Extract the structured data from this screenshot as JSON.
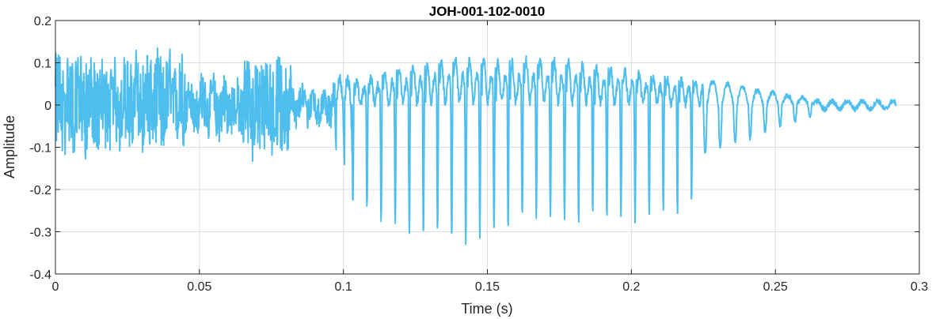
{
  "chart_data": {
    "type": "line",
    "title": "JOH-001-102-0010",
    "xlabel": "Time (s)",
    "ylabel": "Amplitude",
    "xlim": [
      0,
      0.3
    ],
    "ylim": [
      -0.4,
      0.2
    ],
    "xticks": [
      0,
      0.05,
      0.1,
      0.15,
      0.2,
      0.25,
      0.3
    ],
    "xtick_labels": [
      "0",
      "0.05",
      "0.1",
      "0.15",
      "0.2",
      "0.25",
      "0.3"
    ],
    "yticks": [
      -0.4,
      -0.3,
      -0.2,
      -0.1,
      0,
      0.1,
      0.2
    ],
    "ytick_labels": [
      "-0.4",
      "-0.3",
      "-0.2",
      "-0.1",
      "0",
      "0.1",
      "0.2"
    ],
    "grid": true,
    "line_color": "#4DBEEE",
    "series": [
      {
        "x_start": 0,
        "x_end": 0.292,
        "segments": [
          {
            "t0": 0.0,
            "t1": 0.012,
            "style": "noise",
            "hi": 0.12,
            "lo": -0.11
          },
          {
            "t0": 0.012,
            "t1": 0.025,
            "style": "noise",
            "hi": 0.1,
            "lo": -0.1
          },
          {
            "t0": 0.025,
            "t1": 0.045,
            "style": "noise",
            "hi": 0.12,
            "lo": -0.1
          },
          {
            "t0": 0.045,
            "t1": 0.065,
            "style": "noise",
            "hi": 0.06,
            "lo": -0.07
          },
          {
            "t0": 0.065,
            "t1": 0.082,
            "style": "noise",
            "hi": 0.11,
            "lo": -0.12
          },
          {
            "t0": 0.082,
            "t1": 0.097,
            "style": "noise",
            "hi": 0.04,
            "lo": -0.04
          },
          {
            "t0": 0.097,
            "t1": 0.103,
            "style": "onset",
            "hi": 0.08,
            "lo": -0.14
          },
          {
            "t0": 0.103,
            "t1": 0.225,
            "style": "voiced",
            "period": 0.0049
          },
          {
            "t0": 0.225,
            "t1": 0.265,
            "style": "decay",
            "hi": 0.06,
            "lo": -0.12
          },
          {
            "t0": 0.265,
            "t1": 0.292,
            "style": "tail",
            "hi": 0.01,
            "lo": -0.01
          }
        ],
        "voiced_peaks": [
          {
            "t": 0.1055,
            "hi": 0.08,
            "lo": -0.23
          },
          {
            "t": 0.11,
            "hi": 0.1,
            "lo": -0.26
          },
          {
            "t": 0.115,
            "hi": 0.12,
            "lo": -0.28
          },
          {
            "t": 0.12,
            "hi": 0.13,
            "lo": -0.3
          },
          {
            "t": 0.125,
            "hi": 0.14,
            "lo": -0.32
          },
          {
            "t": 0.13,
            "hi": 0.15,
            "lo": -0.3
          },
          {
            "t": 0.135,
            "hi": 0.16,
            "lo": -0.31
          },
          {
            "t": 0.14,
            "hi": 0.17,
            "lo": -0.33
          },
          {
            "t": 0.145,
            "hi": 0.17,
            "lo": -0.32
          },
          {
            "t": 0.15,
            "hi": 0.16,
            "lo": -0.3
          },
          {
            "t": 0.155,
            "hi": 0.15,
            "lo": -0.29
          },
          {
            "t": 0.16,
            "hi": 0.16,
            "lo": -0.27
          },
          {
            "t": 0.165,
            "hi": 0.16,
            "lo": -0.26
          },
          {
            "t": 0.17,
            "hi": 0.17,
            "lo": -0.26
          },
          {
            "t": 0.175,
            "hi": 0.16,
            "lo": -0.27
          },
          {
            "t": 0.18,
            "hi": 0.15,
            "lo": -0.28
          },
          {
            "t": 0.185,
            "hi": 0.14,
            "lo": -0.26
          },
          {
            "t": 0.19,
            "hi": 0.13,
            "lo": -0.27
          },
          {
            "t": 0.195,
            "hi": 0.12,
            "lo": -0.28
          },
          {
            "t": 0.2,
            "hi": 0.12,
            "lo": -0.27
          },
          {
            "t": 0.205,
            "hi": 0.11,
            "lo": -0.27
          },
          {
            "t": 0.21,
            "hi": 0.1,
            "lo": -0.26
          },
          {
            "t": 0.215,
            "hi": 0.09,
            "lo": -0.26
          },
          {
            "t": 0.22,
            "hi": 0.09,
            "lo": -0.22
          }
        ]
      }
    ]
  }
}
